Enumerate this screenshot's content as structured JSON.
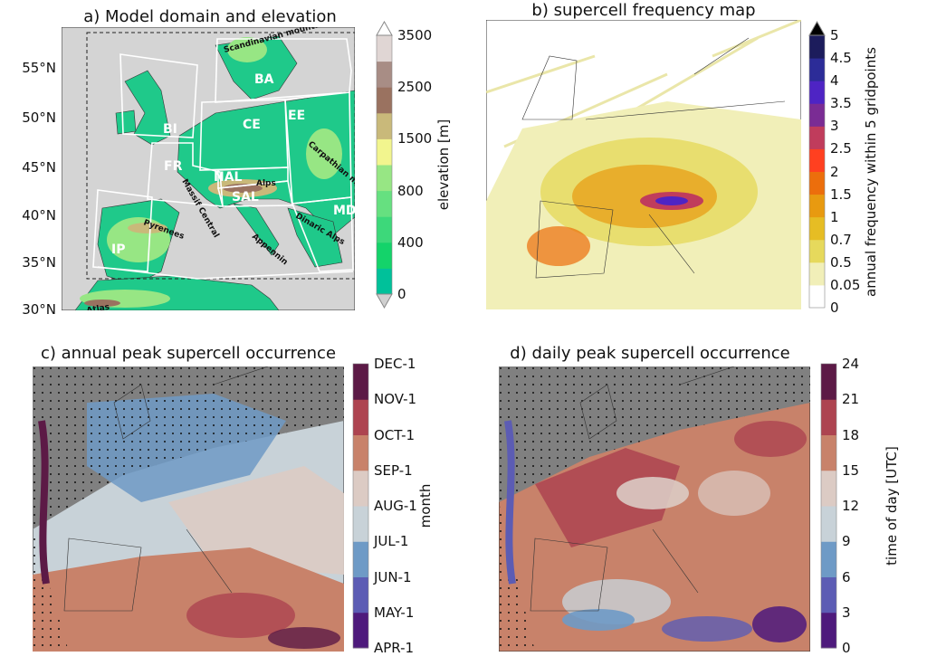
{
  "panels": {
    "a": {
      "title": "a) Model domain and elevation",
      "lat_labels": [
        "55°N",
        "50°N",
        "45°N",
        "40°N",
        "35°N",
        "30°N"
      ],
      "region_labels": [
        "BI",
        "BA",
        "CE",
        "EE",
        "FR",
        "NAL",
        "SAL",
        "MD",
        "IP"
      ],
      "feature_labels": [
        "Scandinavian mountains",
        "Massif Central",
        "Alps",
        "Pyrenees",
        "Appennin",
        "Carpathian mountains",
        "Dinaric Alps",
        "Atlas"
      ],
      "colorbar": {
        "label": "elevation [m]",
        "ticks": [
          "0",
          "400",
          "800",
          "1500",
          "2500",
          "3500"
        ],
        "colors": [
          "#00c19a",
          "#14d36a",
          "#3dd87a",
          "#66e080",
          "#97e684",
          "#f2f58e",
          "#c9b97a",
          "#9a7260",
          "#a88d85",
          "#e0d6d4"
        ],
        "extend": "both"
      }
    },
    "b": {
      "title": "b) supercell frequency map",
      "colorbar": {
        "label": "annual frequency within 5 gridpoints",
        "ticks": [
          "0",
          "0.05",
          "0.5",
          "0.7",
          "1",
          "1.5",
          "2",
          "2.5",
          "3",
          "3.5",
          "4",
          "4.5",
          "5"
        ],
        "colors": [
          "#ffffff",
          "#f1efb8",
          "#e6d95c",
          "#e6bd24",
          "#e89a10",
          "#ec6e0c",
          "#ff4020",
          "#c03c5c",
          "#7a2c94",
          "#4e24c4",
          "#2c2c98",
          "#1c1c5c"
        ],
        "extend": "max"
      }
    },
    "c": {
      "title": "c) annual peak supercell occurrence",
      "colorbar": {
        "label": "month",
        "ticks": [
          "APR-1",
          "MAY-1",
          "JUN-1",
          "JUL-1",
          "AUG-1",
          "SEP-1",
          "OCT-1",
          "NOV-1",
          "DEC-1"
        ],
        "colors": [
          "#4e1a7c",
          "#5c5cb4",
          "#6e9ac6",
          "#c8d2d8",
          "#dccbc4",
          "#c8826a",
          "#ad4450",
          "#5c1a46"
        ]
      }
    },
    "d": {
      "title": "d) daily peak supercell occurrence",
      "colorbar": {
        "label": "time of day [UTC]",
        "ticks": [
          "0",
          "3",
          "6",
          "9",
          "12",
          "15",
          "18",
          "21",
          "24"
        ],
        "colors": [
          "#4e1a7c",
          "#5c5cb4",
          "#6e9ac6",
          "#c8d2d8",
          "#dccbc4",
          "#c8826a",
          "#ad4450",
          "#5c1a46"
        ]
      }
    }
  }
}
